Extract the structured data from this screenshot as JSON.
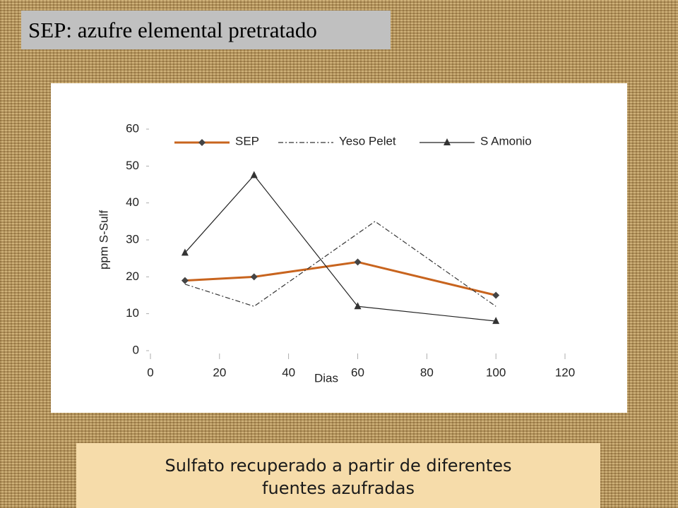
{
  "slide_title": "SEP: azufre elemental pretratado",
  "caption": [
    "Sulfato recuperado a partir de diferentes",
    "fuentes azufradas"
  ],
  "chart_data": {
    "type": "line",
    "x_label": "Dias",
    "y_label": "ppm S-Sulf",
    "xlim": [
      0,
      120
    ],
    "xticks": [
      0,
      20,
      40,
      60,
      80,
      100,
      120
    ],
    "ylim": [
      0,
      60
    ],
    "yticks": [
      0,
      10,
      20,
      30,
      40,
      50,
      60
    ],
    "series": [
      {
        "name": "SEP",
        "color": "#c8641e",
        "line_style": "solid",
        "marker": "diamond",
        "x": [
          10,
          30,
          60,
          100
        ],
        "values": [
          19,
          20,
          24,
          15
        ]
      },
      {
        "name": "Yeso Pelet",
        "color": "#333333",
        "line_style": "dashdot",
        "marker": "none",
        "x": [
          10,
          30,
          65,
          100
        ],
        "values": [
          18,
          12,
          35,
          12
        ]
      },
      {
        "name": "S Amonio",
        "color": "#222222",
        "line_style": "solid",
        "marker": "triangle",
        "x": [
          10,
          30,
          60,
          100
        ],
        "values": [
          26.5,
          47.5,
          12,
          8
        ]
      }
    ]
  }
}
